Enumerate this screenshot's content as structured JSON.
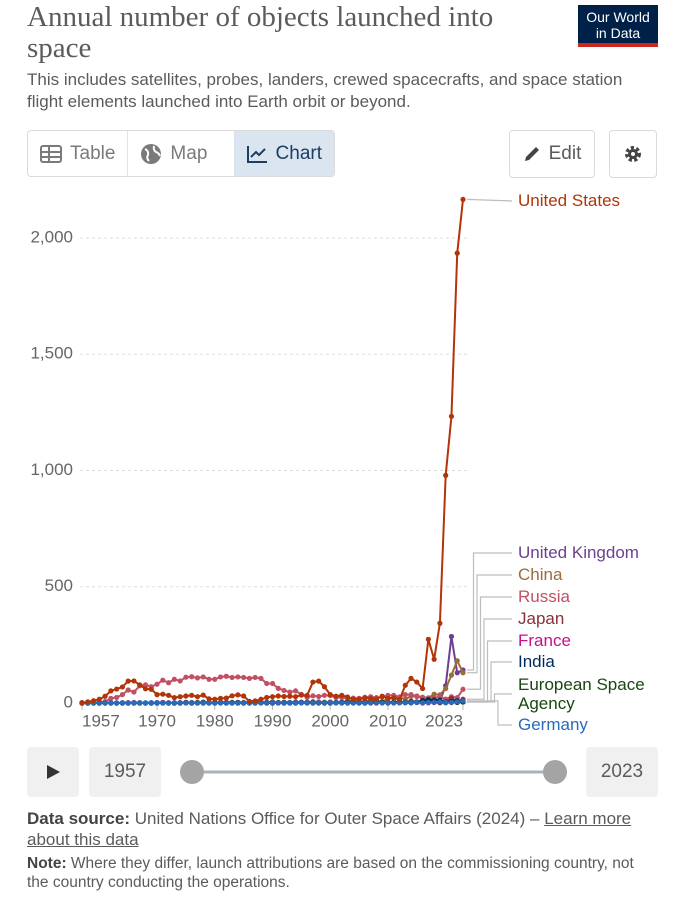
{
  "header": {
    "title": "Annual number of objects launched into space",
    "logo_line1": "Our World",
    "logo_line2": "in Data",
    "subtitle": "This includes satellites, probes, landers, crewed spacecrafts, and space station flight elements launched into Earth orbit or beyond."
  },
  "tabs": [
    "Table",
    "Map",
    "Chart"
  ],
  "buttons": {
    "edit": "Edit"
  },
  "chart_data": {
    "type": "line",
    "x": [
      1957,
      1958,
      1959,
      1960,
      1961,
      1962,
      1963,
      1964,
      1965,
      1966,
      1967,
      1968,
      1969,
      1970,
      1971,
      1972,
      1973,
      1974,
      1975,
      1976,
      1977,
      1978,
      1979,
      1980,
      1981,
      1982,
      1983,
      1984,
      1985,
      1986,
      1987,
      1988,
      1989,
      1990,
      1991,
      1992,
      1993,
      1994,
      1995,
      1996,
      1997,
      1998,
      1999,
      2000,
      2001,
      2002,
      2003,
      2004,
      2005,
      2006,
      2007,
      2008,
      2009,
      2010,
      2011,
      2012,
      2013,
      2014,
      2015,
      2016,
      2017,
      2018,
      2019,
      2020,
      2021,
      2022,
      2023
    ],
    "xlim": [
      1957,
      2023
    ],
    "xticks": [
      1957,
      1970,
      1980,
      1990,
      2000,
      2010,
      2023
    ],
    "ylim": [
      0,
      2200
    ],
    "yticks": [
      0,
      500,
      {
        "value": 1000,
        "label": "1,000"
      },
      {
        "value": 1500,
        "label": "1,500"
      },
      {
        "value": 2000,
        "label": "2,000"
      }
    ],
    "grid": true,
    "series": [
      {
        "name": "United States",
        "color": "#b13507",
        "values": [
          0,
          5,
          10,
          16,
          29,
          52,
          60,
          69,
          94,
          95,
          78,
          61,
          59,
          36,
          38,
          33,
          23,
          27,
          30,
          33,
          27,
          34,
          18,
          16,
          20,
          21,
          31,
          35,
          30,
          7,
          9,
          16,
          24,
          27,
          30,
          28,
          29,
          27,
          34,
          33,
          90,
          94,
          70,
          36,
          29,
          33,
          26,
          16,
          16,
          21,
          19,
          17,
          29,
          20,
          22,
          14,
          76,
          106,
          90,
          62,
          274,
          188,
          343,
          979,
          1233,
          1935,
          2166
        ]
      },
      {
        "name": "United Kingdom",
        "color": "#6d3e91",
        "values": [
          0,
          0,
          0,
          0,
          0,
          1,
          0,
          1,
          0,
          0,
          1,
          0,
          1,
          0,
          1,
          0,
          0,
          1,
          1,
          0,
          0,
          1,
          0,
          0,
          1,
          0,
          0,
          0,
          0,
          0,
          0,
          1,
          1,
          1,
          1,
          0,
          0,
          0,
          2,
          1,
          1,
          1,
          1,
          1,
          2,
          1,
          1,
          1,
          1,
          1,
          1,
          3,
          2,
          3,
          1,
          1,
          4,
          8,
          5,
          6,
          9,
          20,
          7,
          75,
          286,
          130,
          142
        ]
      },
      {
        "name": "China",
        "color": "#996d39",
        "values": [
          0,
          0,
          0,
          0,
          0,
          0,
          0,
          0,
          0,
          0,
          0,
          0,
          0,
          1,
          1,
          0,
          0,
          0,
          3,
          2,
          0,
          1,
          0,
          0,
          1,
          1,
          1,
          3,
          1,
          2,
          2,
          4,
          0,
          5,
          1,
          3,
          3,
          5,
          2,
          4,
          6,
          5,
          4,
          5,
          1,
          5,
          8,
          10,
          5,
          6,
          11,
          10,
          6,
          19,
          23,
          23,
          17,
          29,
          30,
          25,
          22,
          38,
          35,
          62,
          120,
          182,
          130
        ]
      },
      {
        "name": "Russia",
        "color": "#c15065",
        "values": [
          2,
          1,
          3,
          3,
          6,
          20,
          24,
          36,
          56,
          47,
          74,
          78,
          70,
          81,
          98,
          87,
          102,
          95,
          111,
          113,
          108,
          112,
          102,
          102,
          112,
          115,
          110,
          112,
          110,
          106,
          110,
          106,
          84,
          84,
          63,
          54,
          47,
          52,
          37,
          24,
          31,
          28,
          33,
          32,
          24,
          24,
          20,
          21,
          20,
          25,
          27,
          23,
          26,
          33,
          33,
          26,
          36,
          36,
          28,
          20,
          20,
          22,
          27,
          17,
          27,
          23,
          59
        ]
      },
      {
        "name": "Japan",
        "color": "#883039",
        "values": [
          0,
          0,
          0,
          0,
          0,
          0,
          0,
          0,
          0,
          0,
          0,
          0,
          0,
          1,
          2,
          1,
          0,
          1,
          2,
          2,
          2,
          4,
          2,
          2,
          3,
          3,
          3,
          3,
          2,
          3,
          4,
          2,
          4,
          4,
          2,
          3,
          1,
          3,
          4,
          3,
          3,
          1,
          0,
          1,
          3,
          3,
          5,
          0,
          4,
          6,
          4,
          3,
          3,
          3,
          4,
          6,
          4,
          6,
          4,
          12,
          8,
          15,
          10,
          6,
          20,
          8,
          16
        ]
      },
      {
        "name": "France",
        "color": "#c4108a",
        "values": [
          0,
          0,
          0,
          0,
          0,
          0,
          0,
          0,
          1,
          2,
          1,
          0,
          0,
          1,
          2,
          0,
          0,
          0,
          3,
          0,
          1,
          0,
          0,
          0,
          1,
          0,
          0,
          0,
          0,
          1,
          0,
          1,
          0,
          1,
          0,
          0,
          1,
          0,
          3,
          0,
          0,
          1,
          0,
          0,
          1,
          2,
          0,
          3,
          0,
          0,
          0,
          0,
          2,
          0,
          2,
          1,
          1,
          1,
          2,
          0,
          1,
          2,
          1,
          1,
          2,
          3,
          4
        ]
      },
      {
        "name": "India",
        "color": "#00295b",
        "values": [
          0,
          0,
          0,
          0,
          0,
          0,
          0,
          0,
          0,
          0,
          0,
          0,
          0,
          0,
          0,
          0,
          0,
          0,
          1,
          0,
          0,
          0,
          1,
          1,
          2,
          1,
          1,
          0,
          0,
          0,
          1,
          1,
          0,
          0,
          1,
          1,
          1,
          1,
          1,
          1,
          1,
          0,
          1,
          0,
          2,
          2,
          1,
          1,
          2,
          0,
          3,
          6,
          2,
          3,
          4,
          3,
          2,
          1,
          4,
          9,
          14,
          10,
          12,
          3,
          6,
          10,
          8
        ]
      },
      {
        "name": "European Space Agency",
        "color": "#18470f",
        "values": [
          0,
          0,
          0,
          0,
          0,
          0,
          0,
          0,
          0,
          0,
          0,
          0,
          0,
          0,
          0,
          0,
          0,
          0,
          1,
          0,
          2,
          1,
          1,
          0,
          1,
          0,
          1,
          1,
          1,
          0,
          0,
          1,
          1,
          1,
          1,
          0,
          0,
          0,
          1,
          1,
          0,
          0,
          0,
          0,
          1,
          0,
          1,
          1,
          0,
          0,
          1,
          2,
          4,
          1,
          2,
          2,
          3,
          3,
          3,
          4,
          3,
          4,
          3,
          2,
          3,
          2,
          4
        ]
      },
      {
        "name": "Germany",
        "color": "#286bbb",
        "values": [
          0,
          0,
          0,
          0,
          0,
          0,
          0,
          0,
          0,
          0,
          0,
          0,
          1,
          1,
          0,
          0,
          1,
          1,
          0,
          1,
          0,
          0,
          0,
          0,
          0,
          0,
          0,
          0,
          0,
          0,
          0,
          0,
          1,
          2,
          0,
          0,
          1,
          1,
          1,
          1,
          1,
          1,
          1,
          1,
          1,
          1,
          0,
          0,
          1,
          1,
          1,
          3,
          0,
          2,
          0,
          1,
          1,
          1,
          3,
          1,
          3,
          3,
          5,
          2,
          3,
          5,
          9
        ]
      }
    ]
  },
  "timeline": {
    "start": "1957",
    "end": "2023"
  },
  "footer": {
    "source_label": "Data source:",
    "source": "United Nations Office for Outer Space Affairs (2024) –",
    "link": "Learn more about this data",
    "note_label": "Note:",
    "note": "Where they differ, launch attributions are based on the commissioning country, not the country conducting the operations."
  }
}
